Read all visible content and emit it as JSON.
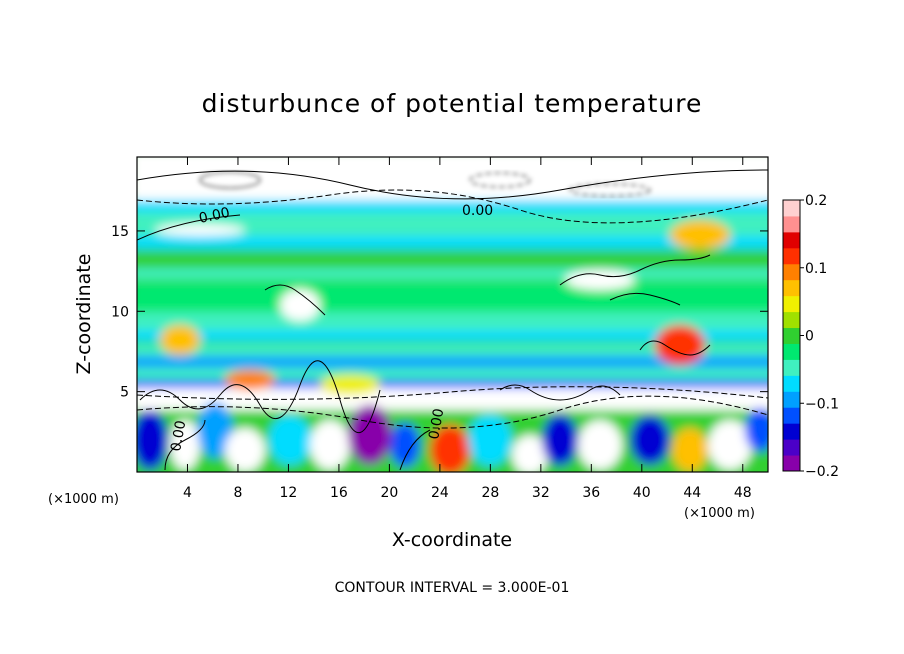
{
  "chart_data": {
    "type": "heatmap",
    "title": "disturbunce of potential temperature",
    "xlabel": "X-coordinate",
    "ylabel": "Z-coordinate",
    "x_unit": "(×1000 m)",
    "x_unit_right": "(×1000 m)",
    "x_ticks": [
      4,
      8,
      12,
      16,
      20,
      24,
      28,
      32,
      36,
      40,
      44,
      48
    ],
    "y_ticks": [
      5,
      10,
      15
    ],
    "xlim": [
      0,
      50
    ],
    "ylim": [
      0,
      19.6
    ],
    "colorbar": {
      "ticks": [
        "0.2",
        "0.1",
        "0",
        "-0.1",
        "-0.2"
      ],
      "range": [
        -0.2,
        0.2
      ],
      "colors": [
        "#8800aa",
        "#4b00c8",
        "#0000d2",
        "#0050ff",
        "#00a0ff",
        "#00dcff",
        "#40f0c0",
        "#00e870",
        "#30d030",
        "#a0e000",
        "#f0f000",
        "#ffc000",
        "#ff8000",
        "#ff3000",
        "#e00000",
        "#ff9090",
        "#ffd0d0"
      ]
    },
    "contour_labels": [
      "0.00",
      "0.00",
      "0.00",
      "0.00"
    ],
    "annotation": "CONTOUR INTERVAL = 3.000E-01",
    "grid": false,
    "legend": "colorbar-right"
  }
}
